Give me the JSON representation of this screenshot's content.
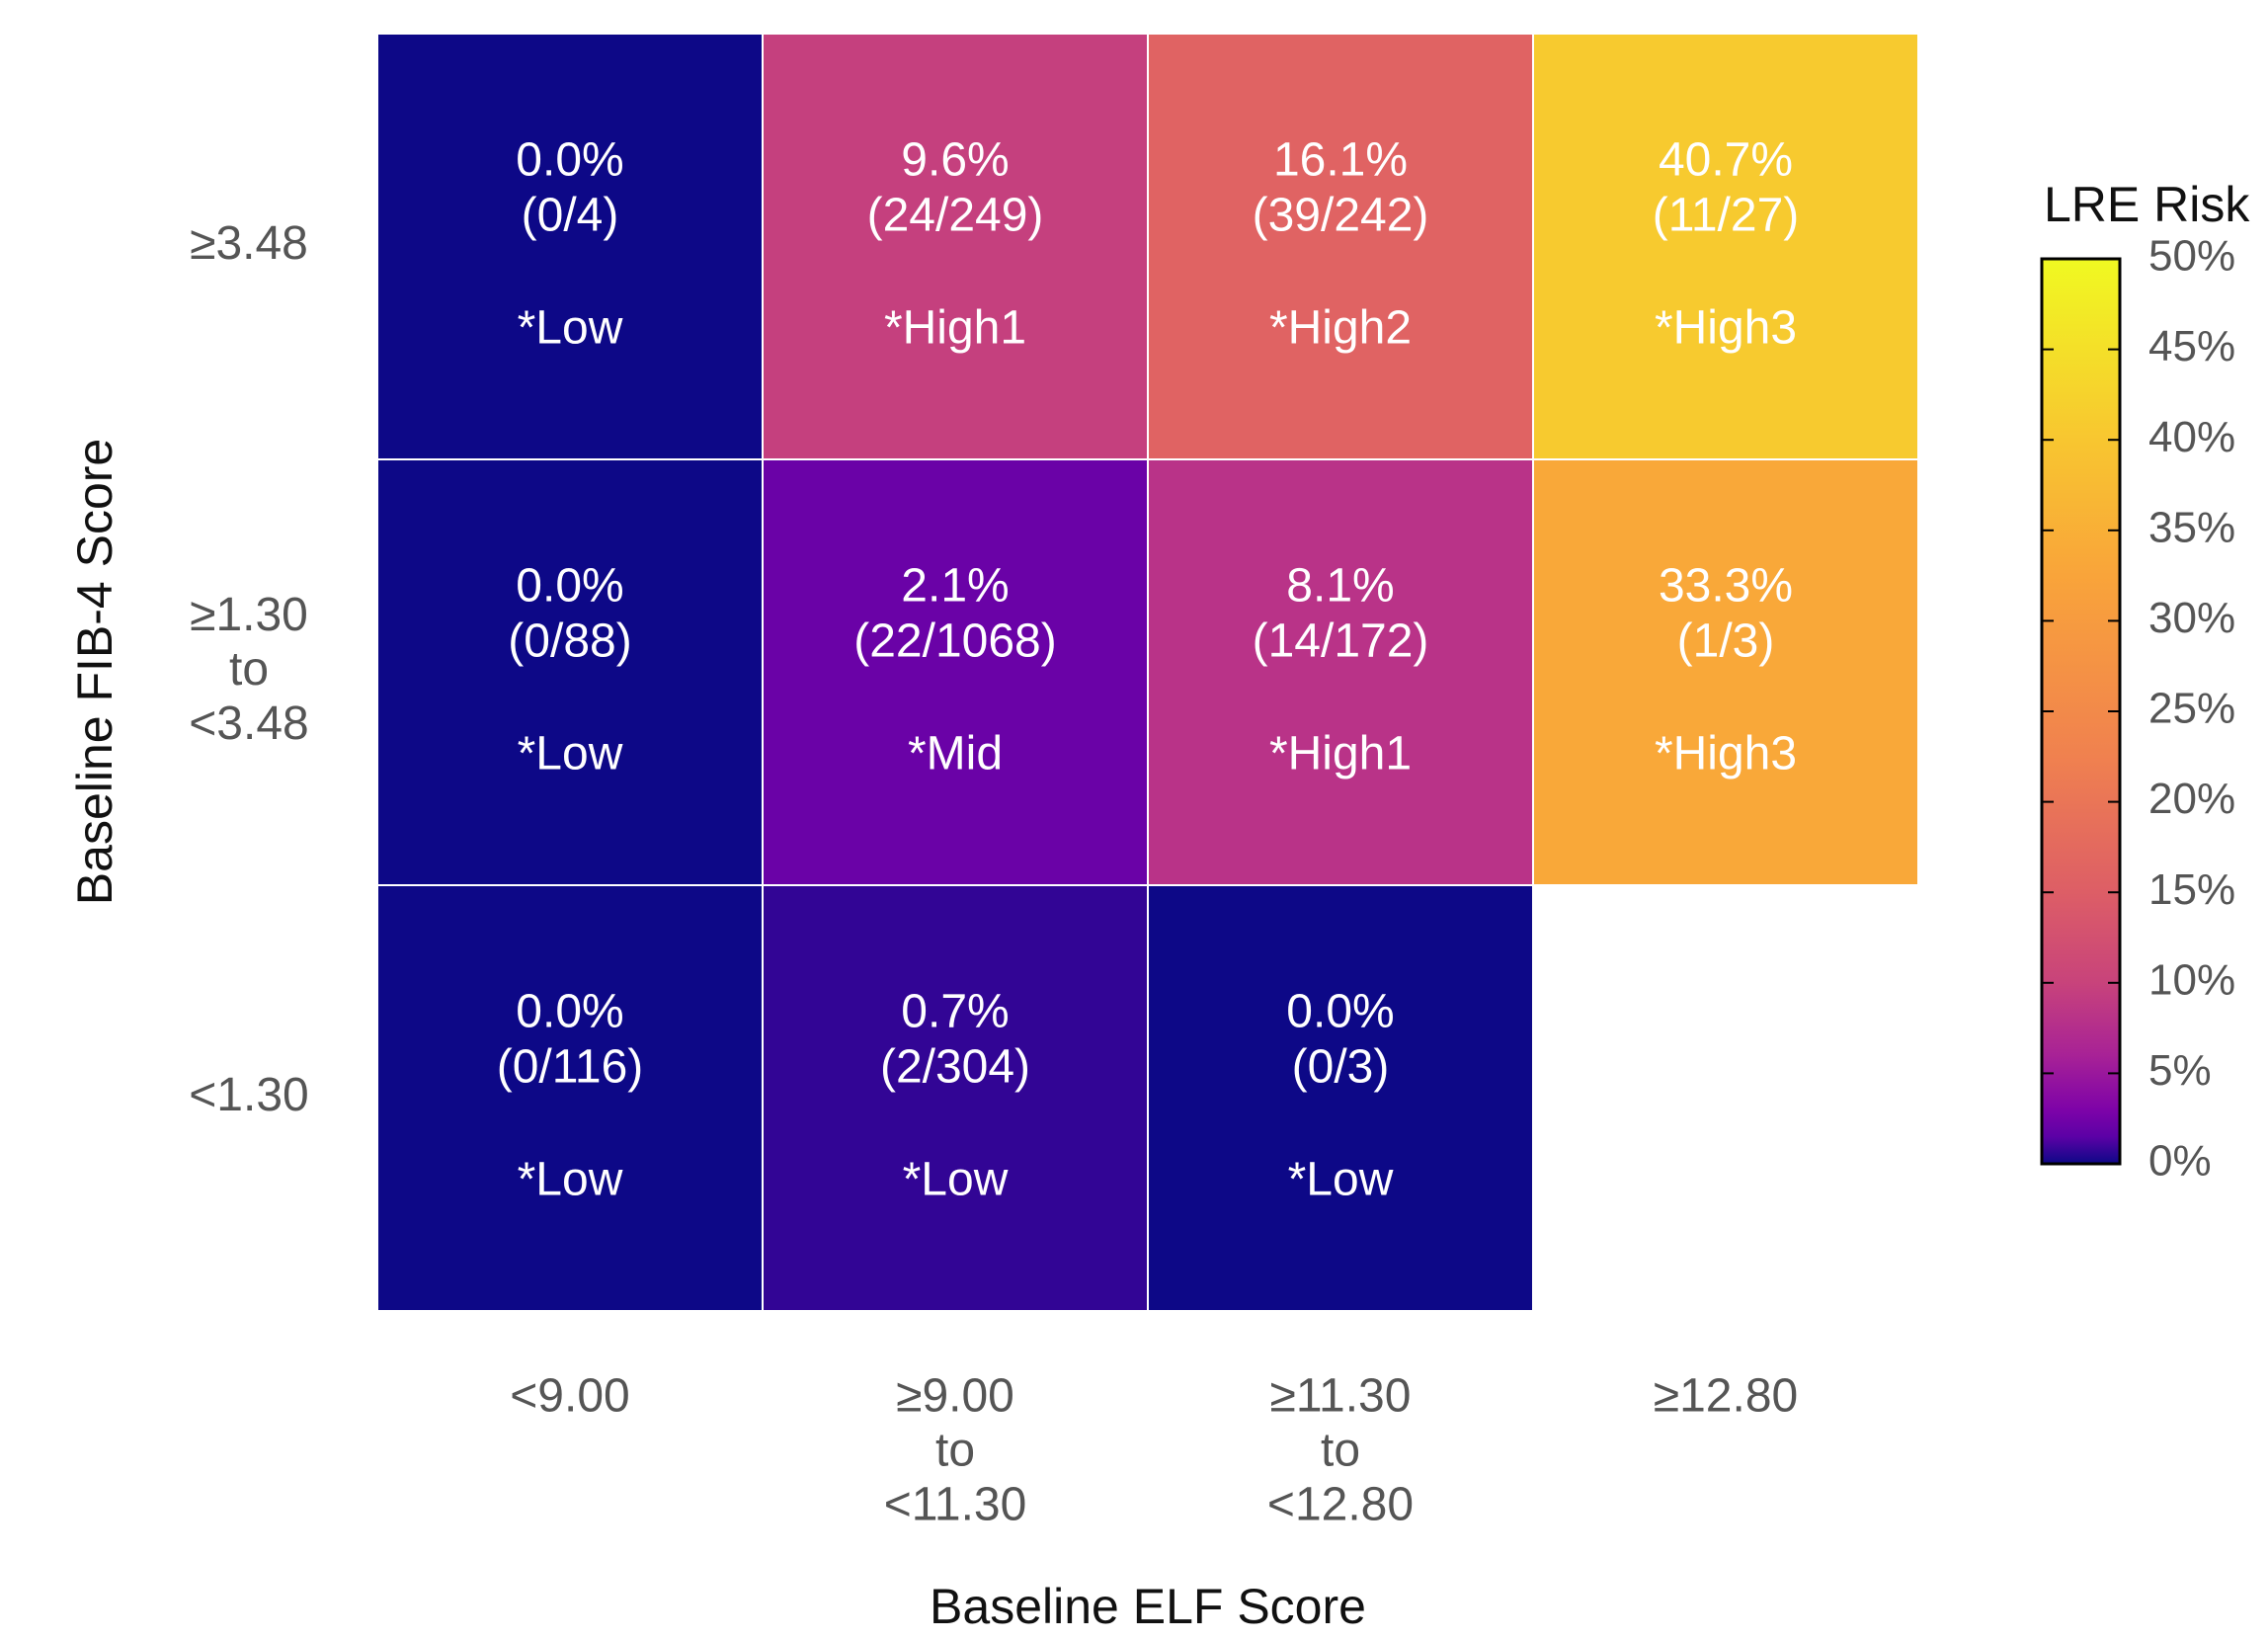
{
  "chart_data": {
    "type": "heatmap",
    "x_label": "Baseline ELF Score",
    "y_label": "Baseline FIB-4 Score",
    "x_categories": [
      [
        "<9.00"
      ],
      [
        "≥9.00",
        "to",
        "<11.30"
      ],
      [
        "≥11.30",
        "to",
        "<12.80"
      ],
      [
        "≥12.80"
      ]
    ],
    "y_categories": [
      [
        "≥3.48"
      ],
      [
        "≥1.30",
        "to",
        "<3.48"
      ],
      [
        "<1.30"
      ]
    ],
    "z": [
      [
        0.0,
        9.6,
        16.1,
        40.7
      ],
      [
        0.0,
        2.1,
        8.1,
        33.3
      ],
      [
        0.0,
        0.7,
        0.0,
        null
      ]
    ],
    "value_labels": [
      [
        "0.0%",
        "9.6%",
        "16.1%",
        "40.7%"
      ],
      [
        "0.0%",
        "2.1%",
        "8.1%",
        "33.3%"
      ],
      [
        "0.0%",
        "0.7%",
        "0.0%",
        null
      ]
    ],
    "counts": [
      [
        "(0/4)",
        "(24/249)",
        "(39/242)",
        "(11/27)"
      ],
      [
        "(0/88)",
        "(22/1068)",
        "(14/172)",
        "(1/3)"
      ],
      [
        "(0/116)",
        "(2/304)",
        "(0/3)",
        null
      ]
    ],
    "groups": [
      [
        "*Low",
        "*High1",
        "*High2",
        "*High3"
      ],
      [
        "*Low",
        "*Mid",
        "*High1",
        "*High3"
      ],
      [
        "*Low",
        "*Low",
        "*Low",
        null
      ]
    ],
    "colorbar_title": "LRE Risk",
    "zlim": [
      0,
      50
    ],
    "zticks": [
      {
        "value": 0,
        "label": "0%"
      },
      {
        "value": 5,
        "label": "5%"
      },
      {
        "value": 10,
        "label": "10%"
      },
      {
        "value": 15,
        "label": "15%"
      },
      {
        "value": 20,
        "label": "20%"
      },
      {
        "value": 25,
        "label": "25%"
      },
      {
        "value": 30,
        "label": "30%"
      },
      {
        "value": 35,
        "label": "35%"
      },
      {
        "value": 40,
        "label": "40%"
      },
      {
        "value": 45,
        "label": "45%"
      },
      {
        "value": 50,
        "label": "50%"
      }
    ],
    "colorscale": [
      [
        0,
        "#0d0887"
      ],
      [
        0.03,
        "#5c01a6"
      ],
      [
        0.06,
        "#7e03a8"
      ],
      [
        0.12,
        "#a82296"
      ],
      [
        0.2,
        "#c8437b"
      ],
      [
        0.3,
        "#dd5e66"
      ],
      [
        0.45,
        "#f0814f"
      ],
      [
        0.65,
        "#f9a43a"
      ],
      [
        0.8,
        "#f8c630"
      ],
      [
        1,
        "#f0f921"
      ]
    ]
  }
}
